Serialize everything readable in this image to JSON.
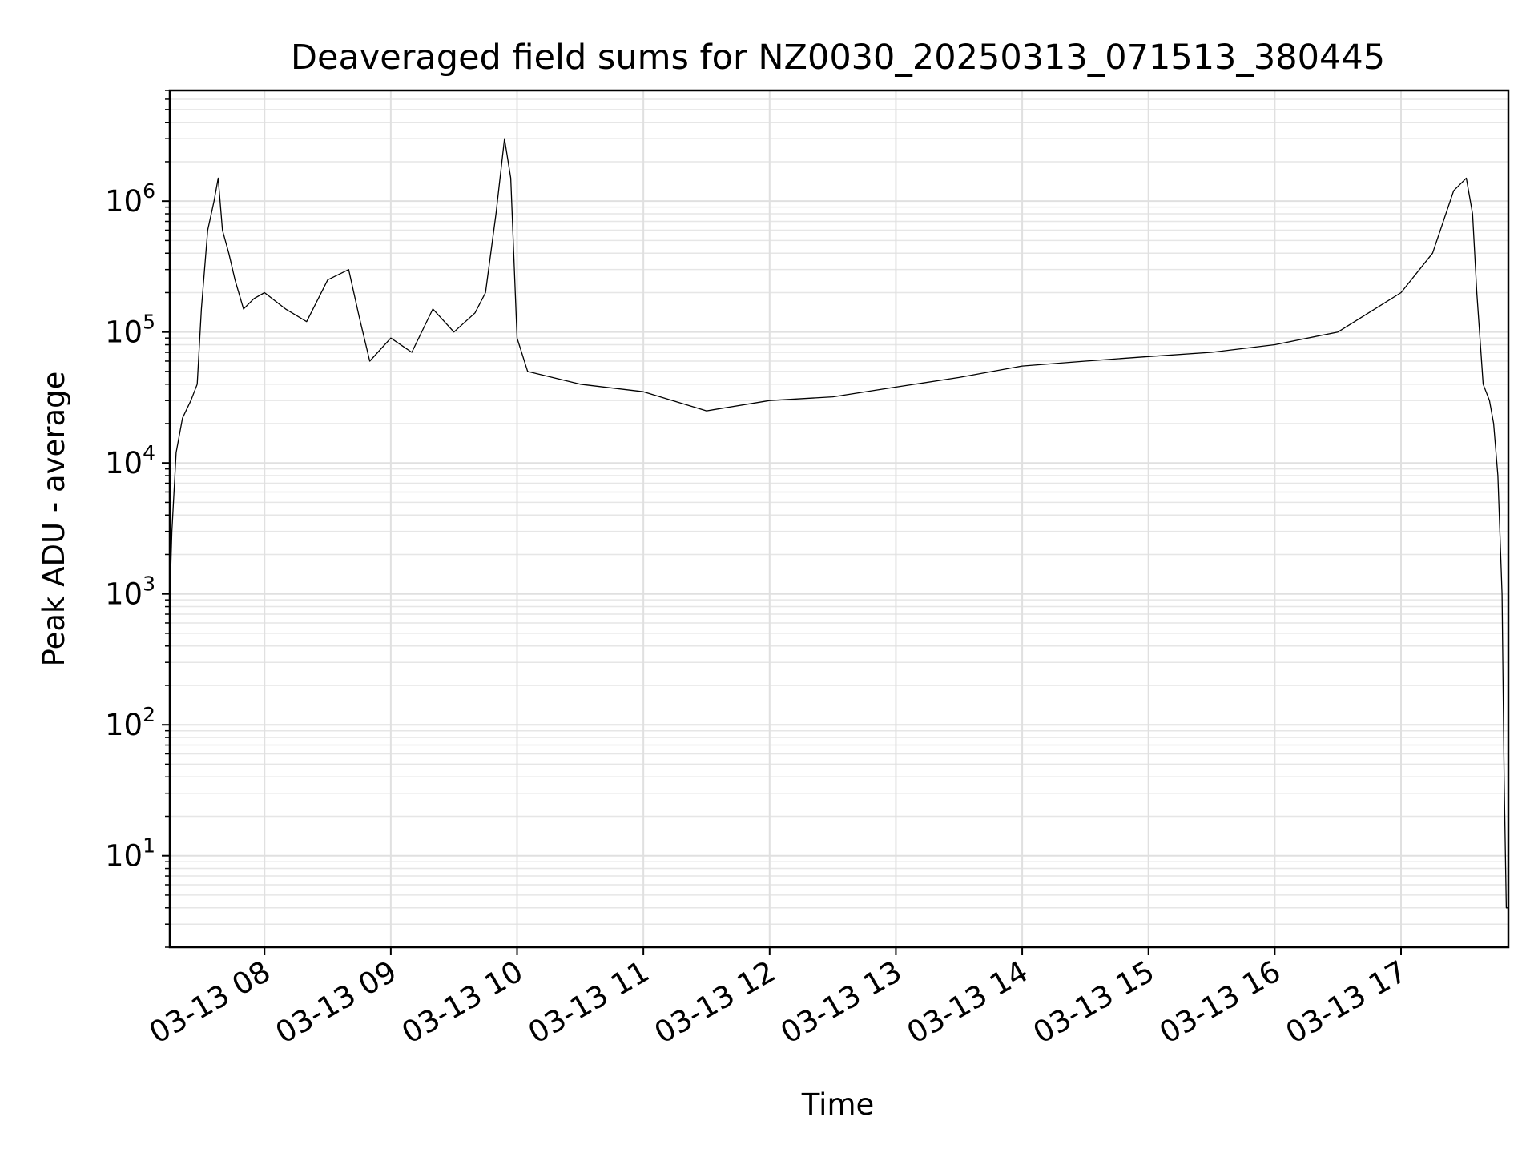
{
  "chart_data": {
    "type": "line",
    "title": "Deaveraged field sums for NZ0030_20250313_071513_380445",
    "xlabel": "Time",
    "ylabel": "Peak ADU - average",
    "yscale": "log",
    "ylim": [
      2,
      7000000
    ],
    "xlim": [
      "2025-03-13 07:15",
      "2025-03-13 17:51"
    ],
    "grid": true,
    "x_ticks": [
      {
        "value": "2025-03-13 08:00",
        "label": "03-13 08"
      },
      {
        "value": "2025-03-13 09:00",
        "label": "03-13 09"
      },
      {
        "value": "2025-03-13 10:00",
        "label": "03-13 10"
      },
      {
        "value": "2025-03-13 11:00",
        "label": "03-13 11"
      },
      {
        "value": "2025-03-13 12:00",
        "label": "03-13 12"
      },
      {
        "value": "2025-03-13 13:00",
        "label": "03-13 13"
      },
      {
        "value": "2025-03-13 14:00",
        "label": "03-13 14"
      },
      {
        "value": "2025-03-13 15:00",
        "label": "03-13 15"
      },
      {
        "value": "2025-03-13 16:00",
        "label": "03-13 16"
      },
      {
        "value": "2025-03-13 17:00",
        "label": "03-13 17"
      }
    ],
    "y_ticks": [
      {
        "value": 10,
        "base": "10",
        "exp": "1"
      },
      {
        "value": 100,
        "base": "10",
        "exp": "2"
      },
      {
        "value": 1000,
        "base": "10",
        "exp": "3"
      },
      {
        "value": 10000,
        "base": "10",
        "exp": "4"
      },
      {
        "value": 100000,
        "base": "10",
        "exp": "5"
      },
      {
        "value": 1000000,
        "base": "10",
        "exp": "6"
      }
    ],
    "series": [
      {
        "x": [
          "2025-03-13 07:15",
          "2025-03-13 07:16",
          "2025-03-13 07:18",
          "2025-03-13 07:21",
          "2025-03-13 07:25",
          "2025-03-13 07:28",
          "2025-03-13 07:30",
          "2025-03-13 07:33",
          "2025-03-13 07:36",
          "2025-03-13 07:38",
          "2025-03-13 07:40",
          "2025-03-13 07:43",
          "2025-03-13 07:46",
          "2025-03-13 07:50",
          "2025-03-13 07:55",
          "2025-03-13 08:00",
          "2025-03-13 08:10",
          "2025-03-13 08:20",
          "2025-03-13 08:30",
          "2025-03-13 08:40",
          "2025-03-13 08:45",
          "2025-03-13 08:50",
          "2025-03-13 09:00",
          "2025-03-13 09:10",
          "2025-03-13 09:20",
          "2025-03-13 09:30",
          "2025-03-13 09:40",
          "2025-03-13 09:45",
          "2025-03-13 09:50",
          "2025-03-13 09:54",
          "2025-03-13 09:57",
          "2025-03-13 10:00",
          "2025-03-13 10:05",
          "2025-03-13 10:30",
          "2025-03-13 11:00",
          "2025-03-13 11:30",
          "2025-03-13 12:00",
          "2025-03-13 12:30",
          "2025-03-13 13:00",
          "2025-03-13 13:30",
          "2025-03-13 14:00",
          "2025-03-13 14:30",
          "2025-03-13 15:00",
          "2025-03-13 15:30",
          "2025-03-13 16:00",
          "2025-03-13 16:30",
          "2025-03-13 17:00",
          "2025-03-13 17:15",
          "2025-03-13 17:25",
          "2025-03-13 17:31",
          "2025-03-13 17:34",
          "2025-03-13 17:36",
          "2025-03-13 17:39",
          "2025-03-13 17:42",
          "2025-03-13 17:44",
          "2025-03-13 17:46",
          "2025-03-13 17:48",
          "2025-03-13 17:49",
          "2025-03-13 17:50",
          "2025-03-13 17:51"
        ],
        "values": [
          900,
          3000,
          12000,
          22000,
          30000,
          40000,
          150000,
          600000,
          1000000,
          1500000,
          600000,
          400000,
          250000,
          150000,
          180000,
          200000,
          150000,
          120000,
          250000,
          300000,
          130000,
          60000,
          90000,
          70000,
          150000,
          100000,
          140000,
          200000,
          800000,
          3000000,
          1500000,
          90000,
          50000,
          40000,
          35000,
          25000,
          30000,
          32000,
          38000,
          45000,
          55000,
          60000,
          65000,
          70000,
          80000,
          100000,
          200000,
          400000,
          1200000,
          1500000,
          800000,
          200000,
          40000,
          30000,
          20000,
          8000,
          1000,
          40,
          4,
          4
        ]
      }
    ]
  }
}
